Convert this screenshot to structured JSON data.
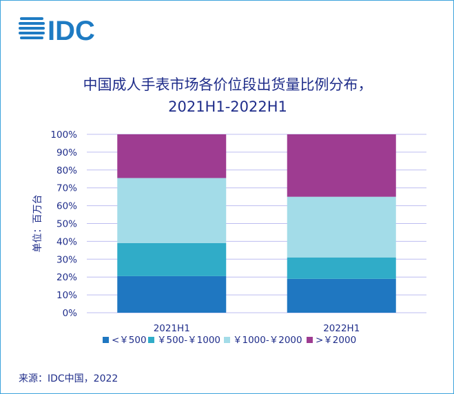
{
  "logo": {
    "text": "IDC",
    "color": "#1e7bc3"
  },
  "footer": {
    "source": "来源：IDC中国，2022"
  },
  "colors": {
    "text": "#1f2d8a",
    "grid": "#bcbcf0",
    "series": [
      "#1f77c1",
      "#30acc8",
      "#a3dce8",
      "#9e3c91"
    ]
  },
  "chart_data": {
    "type": "bar",
    "stacked": true,
    "title": "中国成人手表市场各价位段出货量比例分布，",
    "subtitle": "2021H1-2022H1",
    "xlabel": "",
    "ylabel": "单位：百万台",
    "ylim": [
      0,
      100
    ],
    "yticks": [
      "0%",
      "10%",
      "20%",
      "30%",
      "40%",
      "50%",
      "60%",
      "70%",
      "80%",
      "90%",
      "100%"
    ],
    "grid": true,
    "legend": "bottom",
    "categories": [
      "2021H1",
      "2022H1"
    ],
    "series": [
      {
        "name": "<￥500",
        "values": [
          20.5,
          19
        ]
      },
      {
        "name": "￥500-￥1000",
        "values": [
          18.5,
          12
        ]
      },
      {
        "name": "￥1000-￥2000",
        "values": [
          36.5,
          34
        ]
      },
      {
        "name": ">￥2000",
        "values": [
          24.5,
          35
        ]
      }
    ]
  }
}
